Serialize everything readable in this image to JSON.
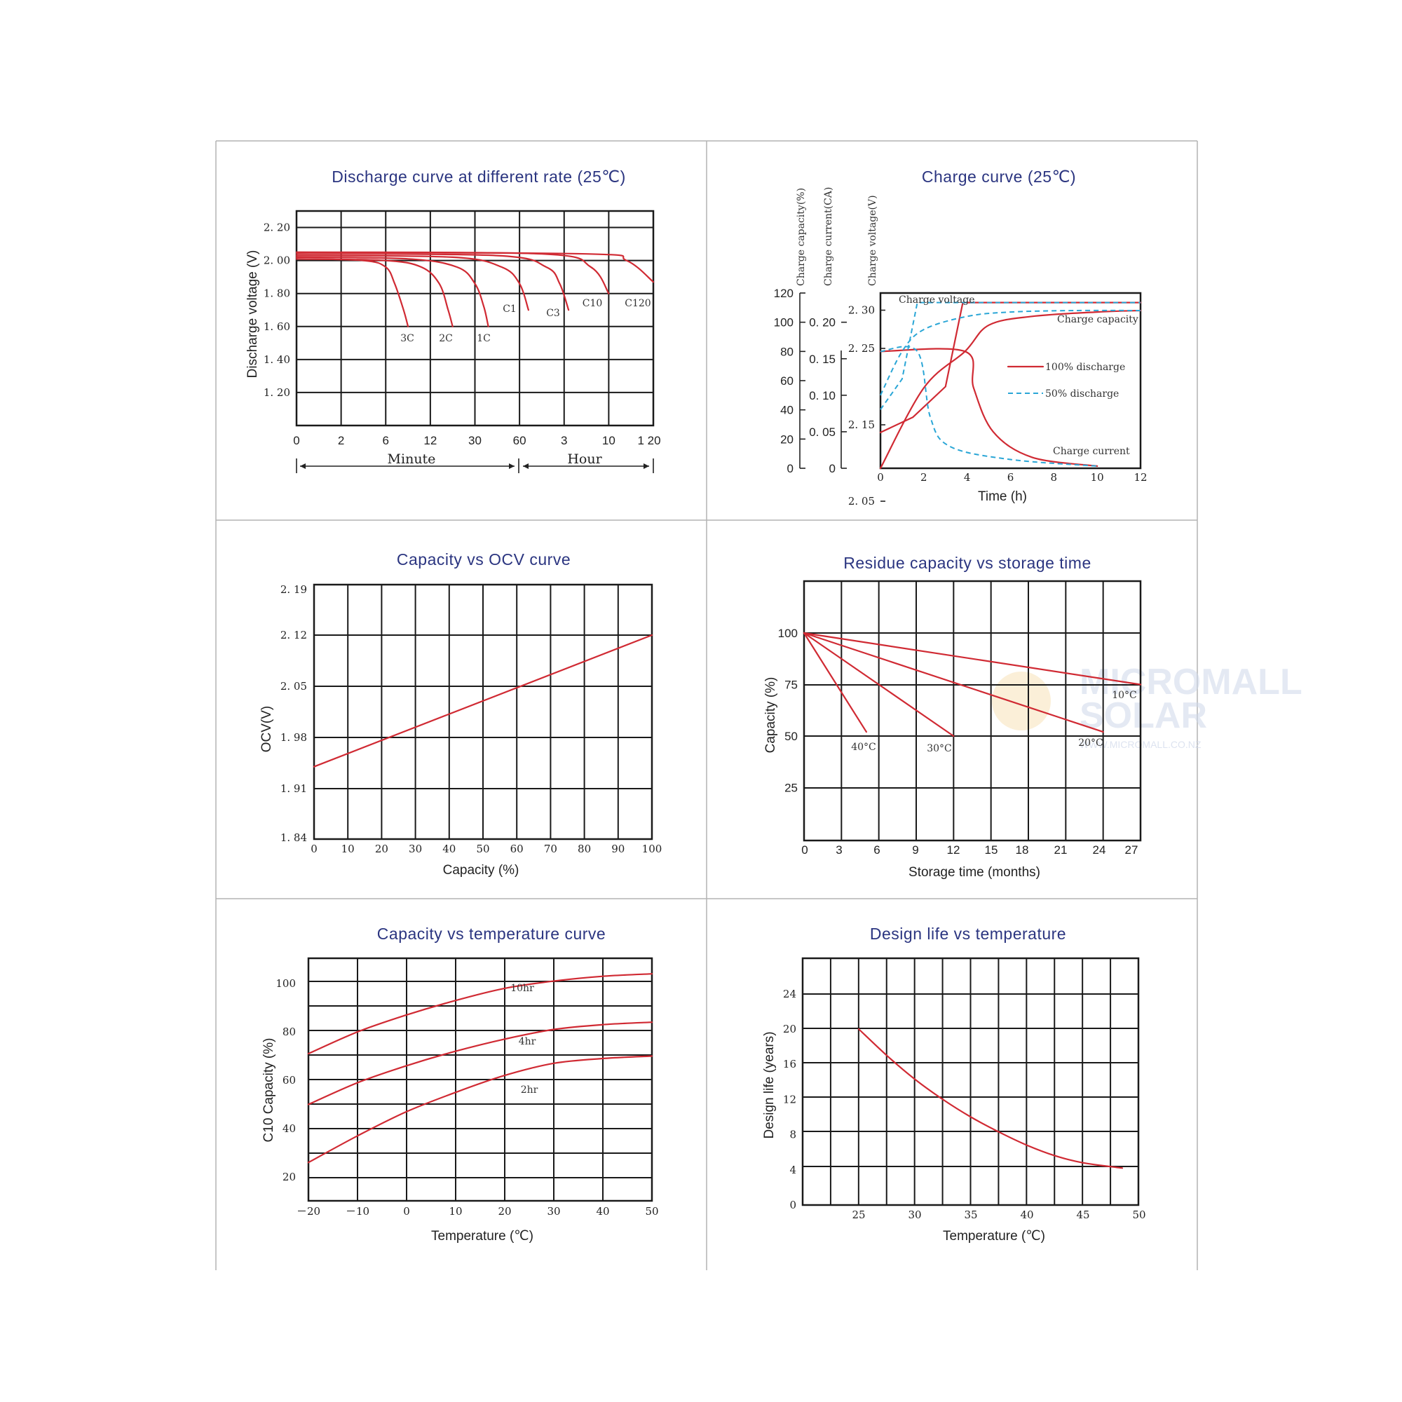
{
  "watermark": {
    "line1": "MICROMALL",
    "line2": "SOLAR",
    "url": "WWW.MICROMALL.CO.NZ"
  },
  "chart_data": [
    {
      "id": "discharge",
      "type": "line",
      "title": "Discharge curve at different rate (25℃)",
      "ylabel": "Discharge voltage (V)",
      "xlabel": "",
      "yticks": [
        "2. 20",
        "2. 00",
        "1. 80",
        "1. 60",
        "1. 40",
        "1. 20"
      ],
      "xticks": [
        "0",
        "2",
        "6",
        "12",
        "30",
        "60",
        "3",
        "10",
        "1 20"
      ],
      "x_groups": [
        "Minute",
        "Hour"
      ],
      "series": [
        {
          "name": "3C",
          "x": [
            0,
            1.5,
            2.0,
            2.2,
            2.4,
            2.5
          ],
          "y": [
            2.01,
            2.0,
            1.96,
            1.86,
            1.7,
            1.6
          ]
        },
        {
          "name": "2C",
          "x": [
            0,
            2.0,
            2.8,
            3.2,
            3.4,
            3.5
          ],
          "y": [
            2.01,
            2.0,
            1.96,
            1.86,
            1.7,
            1.6
          ]
        },
        {
          "name": "1C",
          "x": [
            0,
            2.5,
            3.6,
            4.0,
            4.2,
            4.3
          ],
          "y": [
            2.02,
            2.01,
            1.96,
            1.86,
            1.72,
            1.6
          ]
        },
        {
          "name": "C1",
          "x": [
            0,
            3.5,
            4.6,
            5.0,
            5.2
          ],
          "y": [
            2.03,
            2.02,
            1.96,
            1.86,
            1.7
          ]
        },
        {
          "name": "C3",
          "x": [
            0,
            4.5,
            5.6,
            5.9,
            6.1
          ],
          "y": [
            2.04,
            2.03,
            1.96,
            1.86,
            1.7
          ]
        },
        {
          "name": "C10",
          "x": [
            0,
            5.5,
            6.6,
            7.0
          ],
          "y": [
            2.05,
            2.04,
            1.96,
            1.8
          ]
        },
        {
          "name": "C120",
          "x": [
            0,
            6.5,
            7.4,
            8.0
          ],
          "y": [
            2.05,
            2.04,
            2.0,
            1.87
          ]
        }
      ]
    },
    {
      "id": "charge",
      "type": "line",
      "title": "Charge curve (25℃)",
      "xlabel": "Time (h)",
      "axis_titles": [
        "Charge capacity(%)",
        "Charge current(CA)",
        "Charge voltage(V)"
      ],
      "capacity_ticks": [
        "120",
        "100",
        "80",
        "60",
        "40",
        "20",
        "0"
      ],
      "current_ticks": [
        "0. 20",
        "0. 15",
        "0. 10",
        "0. 05",
        "0"
      ],
      "voltage_ticks": [
        "2. 30",
        "2. 25",
        "2. 15",
        "2. 05"
      ],
      "xticks": [
        "0",
        "2",
        "4",
        "6",
        "8",
        "10",
        "12"
      ],
      "annotations": [
        "Charge voltage",
        "Charge capacity",
        "Charge current"
      ],
      "legend": [
        "100% discharge",
        "50% discharge"
      ],
      "series": [
        {
          "name": "100% discharge",
          "x": [
            0,
            1.5,
            3.0,
            3.8,
            12
          ],
          "y": [
            2.14,
            2.16,
            2.2,
            2.31,
            2.31
          ]
        },
        {
          "name": "100% discharge",
          "x": [
            0,
            2,
            3.9,
            5,
            7,
            10,
            12
          ],
          "y": [
            0,
            55,
            80,
            98,
            104,
            107,
            108
          ]
        },
        {
          "name": "100% discharge",
          "x": [
            0,
            3.9,
            4.3,
            5.2,
            7,
            10
          ],
          "y": [
            0.16,
            0.16,
            0.11,
            0.05,
            0.015,
            0.003
          ]
        },
        {
          "name": "50% discharge",
          "x": [
            0,
            1,
            1.7,
            12
          ],
          "y": [
            2.17,
            2.21,
            2.31,
            2.31
          ]
        },
        {
          "name": "50% discharge",
          "x": [
            0,
            1,
            2,
            4,
            6,
            9,
            12
          ],
          "y": [
            50,
            80,
            95,
            104,
            107,
            108,
            108
          ]
        },
        {
          "name": "50% discharge",
          "x": [
            0,
            1.7,
            2.3,
            3.2,
            6,
            10
          ],
          "y": [
            0.16,
            0.16,
            0.07,
            0.03,
            0.012,
            0.003
          ]
        }
      ]
    },
    {
      "id": "ocv",
      "type": "line",
      "title": "Capacity vs OCV curve",
      "xlabel": "Capacity (%)",
      "ylabel": "OCV(V)",
      "xticks": [
        "0",
        "10",
        "20",
        "30",
        "40",
        "50",
        "60",
        "70",
        "80",
        "90",
        "100"
      ],
      "yticks": [
        "2. 19",
        "2. 12",
        "2. 05",
        "1. 98",
        "1. 91",
        "1. 84"
      ],
      "series": [
        {
          "x": [
            0,
            100
          ],
          "y": [
            1.94,
            2.12
          ]
        }
      ]
    },
    {
      "id": "residue",
      "type": "line",
      "title": "Residue capacity vs storage time",
      "xlabel": "Storage time (months)",
      "ylabel": "Capacity (%)",
      "xticks": [
        "0",
        "3",
        "6",
        "9",
        "12",
        "15",
        "18",
        "21",
        "24",
        "27"
      ],
      "yticks": [
        "100",
        "75",
        "50",
        "25"
      ],
      "series": [
        {
          "name": "40°C",
          "x": [
            0,
            5
          ],
          "y": [
            100,
            52
          ]
        },
        {
          "name": "30°C",
          "x": [
            0,
            12
          ],
          "y": [
            100,
            50
          ]
        },
        {
          "name": "20°C",
          "x": [
            0,
            24
          ],
          "y": [
            100,
            52
          ]
        },
        {
          "name": "10°C",
          "x": [
            0,
            27
          ],
          "y": [
            100,
            75
          ]
        }
      ]
    },
    {
      "id": "cap_temp",
      "type": "line",
      "title": "Capacity vs temperature curve",
      "xlabel": "Temperature (℃)",
      "ylabel": "C10 Capacity (%)",
      "xticks": [
        "－20",
        "－10",
        "0",
        "10",
        "20",
        "30",
        "40",
        "50"
      ],
      "yticks": [
        "100",
        "80",
        "60",
        "40",
        "20"
      ],
      "series": [
        {
          "name": "10hr",
          "x": [
            -20,
            -10,
            0,
            10,
            20,
            30,
            40,
            50
          ],
          "y": [
            71,
            80,
            87,
            93,
            98,
            101,
            103,
            104
          ]
        },
        {
          "name": "4hr",
          "x": [
            -20,
            -10,
            0,
            10,
            20,
            30,
            40,
            50
          ],
          "y": [
            50,
            59,
            66,
            72,
            77,
            81,
            83,
            84
          ]
        },
        {
          "name": "2hr",
          "x": [
            -20,
            -10,
            0,
            10,
            20,
            30,
            40,
            50
          ],
          "y": [
            26,
            37,
            47,
            55,
            62,
            67,
            69,
            70
          ]
        }
      ]
    },
    {
      "id": "life_temp",
      "type": "line",
      "title": "Design life vs temperature",
      "xlabel": "Temperature (℃)",
      "ylabel": "Design life (years)",
      "xticks": [
        "25",
        "30",
        "35",
        "40",
        "45",
        "50"
      ],
      "yticks": [
        "24",
        "20",
        "16",
        "12",
        "8",
        "4",
        "0"
      ],
      "series": [
        {
          "x": [
            25,
            27.5,
            30,
            32.5,
            35,
            37.5,
            40,
            42.5,
            45,
            48.5
          ],
          "y": [
            20,
            17,
            14.3,
            12,
            10,
            8.3,
            6.8,
            5.6,
            4.8,
            4.2
          ]
        }
      ]
    }
  ]
}
